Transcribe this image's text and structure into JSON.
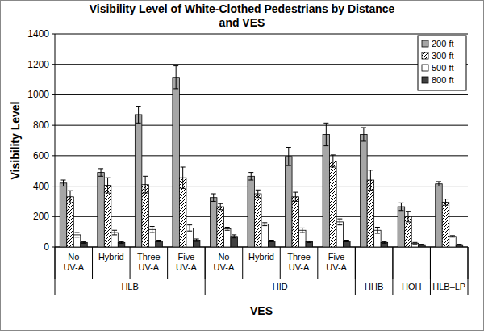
{
  "chart_data": {
    "type": "bar",
    "title": "Visibility Level of White-Clothed Pedestrians by Distance and VES",
    "x_label": "VES",
    "y_label": "Visibility Level",
    "categories": [
      "No UV-A",
      "Hybrid",
      "Three UV-A",
      "Five UV-A",
      "No UV-A",
      "Hybrid",
      "Three UV-A",
      "Five UV-A",
      null,
      null,
      null
    ],
    "groups": [
      {
        "name": "HLB",
        "count": 4
      },
      {
        "name": "HID",
        "count": 4
      },
      {
        "name": "HHB",
        "count": 1
      },
      {
        "name": "HOH",
        "count": 1
      },
      {
        "name": "HLB–LP",
        "count": 1
      }
    ],
    "series": [
      {
        "name": "200 ft",
        "color": "#a6a6a6",
        "values": [
          420,
          490,
          870,
          1115,
          325,
          465,
          595,
          740,
          740,
          265,
          415
        ],
        "errors": [
          20,
          25,
          55,
          75,
          25,
          25,
          60,
          75,
          45,
          25,
          15
        ]
      },
      {
        "name": "300 ft",
        "color": "#ffffff",
        "line_style": "hatched",
        "values": [
          330,
          405,
          410,
          455,
          265,
          350,
          330,
          565,
          440,
          200,
          295
        ],
        "errors": [
          40,
          50,
          55,
          70,
          20,
          25,
          30,
          40,
          65,
          35,
          20
        ]
      },
      {
        "name": "500 ft",
        "color": "#ffffff",
        "values": [
          80,
          95,
          115,
          125,
          120,
          150,
          110,
          165,
          110,
          25,
          70
        ],
        "errors": [
          15,
          15,
          20,
          20,
          10,
          10,
          15,
          20,
          20,
          5,
          5
        ]
      },
      {
        "name": "800 ft",
        "color": "#404040",
        "values": [
          30,
          30,
          40,
          45,
          70,
          40,
          35,
          40,
          30,
          15,
          15
        ],
        "errors": [
          5,
          5,
          5,
          8,
          10,
          5,
          5,
          5,
          5,
          3,
          3
        ]
      }
    ],
    "ylim": [
      0,
      1400
    ],
    "yticks": [
      0,
      200,
      400,
      600,
      800,
      1000,
      1200,
      1400
    ],
    "grid": true,
    "legend": "top-right"
  }
}
